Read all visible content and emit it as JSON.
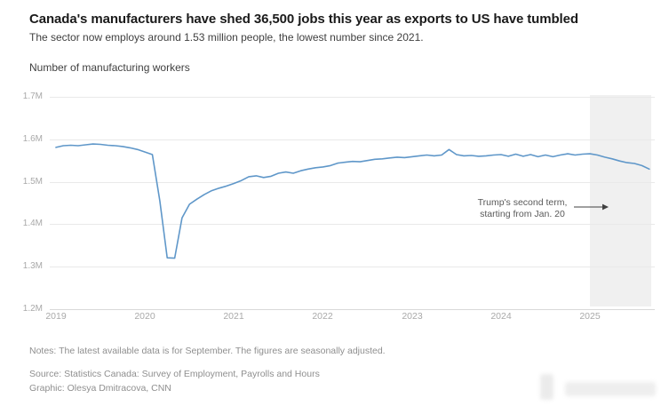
{
  "header": {
    "title": "Canada's manufacturers have shed 36,500 jobs this year as exports to US have tumbled",
    "subtitle": "The sector now employs around 1.53 million people, the lowest number since 2021."
  },
  "chart_data": {
    "type": "line",
    "title": "Number of manufacturing workers",
    "x_start": "2019-01",
    "x_end": "2025-09",
    "frequency": "monthly",
    "x_tick_labels": [
      "2019",
      "2020",
      "2021",
      "2022",
      "2023",
      "2024",
      "2025"
    ],
    "x_tick_years": [
      2019,
      2020,
      2021,
      2022,
      2023,
      2024,
      2025
    ],
    "y_tick_labels": [
      "1.7M",
      "1.6M",
      "1.5M",
      "1.4M",
      "1.3M",
      "1.2M"
    ],
    "ylim": [
      1.2,
      1.7
    ],
    "grid": "horizontal",
    "legend": "none",
    "line_color": "#5f97c9",
    "values_millions": [
      1.581,
      1.585,
      1.586,
      1.585,
      1.587,
      1.589,
      1.588,
      1.586,
      1.585,
      1.583,
      1.58,
      1.576,
      1.57,
      1.564,
      1.455,
      1.321,
      1.32,
      1.415,
      1.447,
      1.459,
      1.47,
      1.479,
      1.485,
      1.49,
      1.496,
      1.503,
      1.512,
      1.514,
      1.51,
      1.513,
      1.52,
      1.523,
      1.52,
      1.526,
      1.53,
      1.533,
      1.535,
      1.538,
      1.544,
      1.546,
      1.548,
      1.547,
      1.55,
      1.553,
      1.554,
      1.556,
      1.558,
      1.557,
      1.559,
      1.561,
      1.563,
      1.561,
      1.563,
      1.576,
      1.564,
      1.561,
      1.562,
      1.56,
      1.561,
      1.563,
      1.564,
      1.56,
      1.565,
      1.56,
      1.564,
      1.559,
      1.563,
      1.559,
      1.563,
      1.566,
      1.563,
      1.565,
      1.566,
      1.563,
      1.558,
      1.554,
      1.549,
      1.545,
      1.543,
      1.538,
      1.53
    ],
    "shaded_region": {
      "start_year_fraction": 2025.0,
      "end_year_fraction": 2025.69,
      "color": "#f0f0f0"
    },
    "annotation": {
      "line1": "Trump's second term,",
      "line2": "starting from Jan. 20"
    }
  },
  "footer": {
    "notes": "Notes: The latest available data is for September. The figures are seasonally adjusted.",
    "source": "Source: Statistics Canada: Survey of Employment, Payrolls and Hours",
    "credit": "Graphic: Olesya Dmitracova, CNN"
  }
}
